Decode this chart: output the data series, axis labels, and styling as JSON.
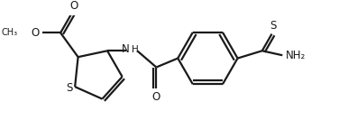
{
  "bg_color": "#ffffff",
  "line_color": "#1a1a1a",
  "line_width": 1.6,
  "font_size": 7.5,
  "figsize": [
    3.76,
    1.54
  ],
  "dpi": 100,
  "xlim": [
    0,
    10
  ],
  "ylim": [
    0,
    4.1
  ]
}
